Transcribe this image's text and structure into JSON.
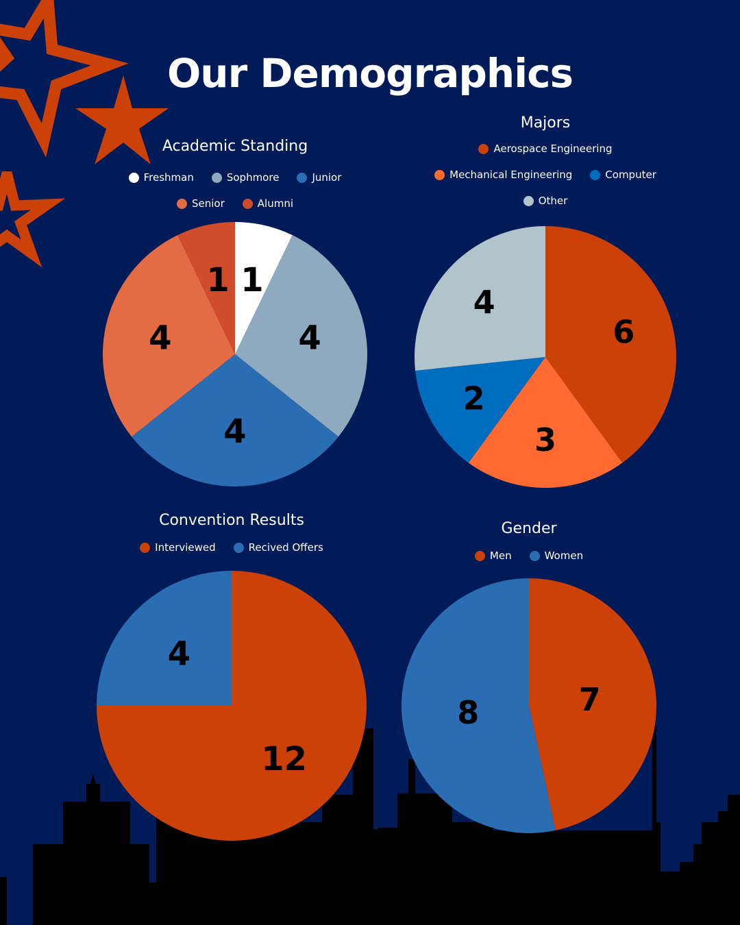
{
  "title": "Our Demographics",
  "decoration": {
    "star_color": "#cc4108",
    "skyline_color": "#000000",
    "background": "#011a58"
  },
  "charts": [
    {
      "title": "Academic Standing",
      "chart_data": {
        "type": "pie",
        "title": "Academic Standing",
        "legend": "top",
        "categories": [
          "Freshman",
          "Sophmore",
          "Junior",
          "Senior",
          "Alumni"
        ],
        "values": [
          1,
          4,
          4,
          4,
          1
        ],
        "colors": [
          "#ffffff",
          "#8faabe",
          "#2a6db2",
          "#e36c45",
          "#d14c2b"
        ]
      }
    },
    {
      "title": "Majors",
      "chart_data": {
        "type": "pie",
        "title": "Majors",
        "legend": "top",
        "categories": [
          "Aerospace Engineering",
          "Mechanical Engineering",
          "Computer",
          "Other"
        ],
        "values": [
          6,
          3,
          2,
          4
        ],
        "colors": [
          "#cc4108",
          "#ff6a33",
          "#006dbf",
          "#b2c4cb"
        ]
      }
    },
    {
      "title": "Convention Results",
      "chart_data": {
        "type": "pie",
        "title": "Convention Results",
        "legend": "top",
        "categories": [
          "Interviewed",
          "Recived Offers"
        ],
        "values": [
          12,
          4
        ],
        "colors": [
          "#cc4108",
          "#2a6db2"
        ]
      }
    },
    {
      "title": "Gender",
      "chart_data": {
        "type": "pie",
        "title": "Gender",
        "legend": "top",
        "categories": [
          "Men",
          "Women"
        ],
        "values": [
          7,
          8
        ],
        "colors": [
          "#cc4108",
          "#2a6db2"
        ]
      }
    }
  ]
}
